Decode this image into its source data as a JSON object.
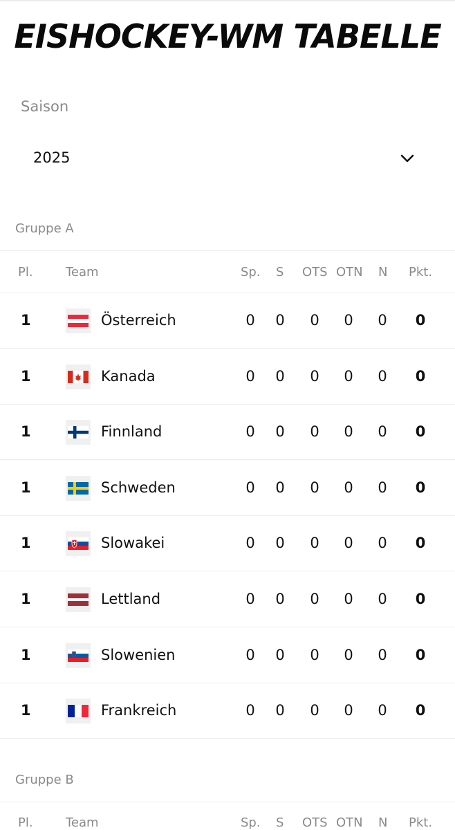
{
  "title": "EISHOCKEY-WM TABELLE",
  "season": {
    "label": "Saison",
    "value": "2025"
  },
  "columns": {
    "rank": "Pl.",
    "team": "Team",
    "sp": "Sp.",
    "s": "S",
    "ots": "OTS",
    "otn": "OTN",
    "n": "N",
    "pkt": "Pkt."
  },
  "groups": [
    {
      "name": "Gruppe A",
      "rows": [
        {
          "rank": "1",
          "team": "Österreich",
          "flag": "austria-flag-icon",
          "sp": "0",
          "s": "0",
          "ots": "0",
          "otn": "0",
          "n": "0",
          "pkt": "0"
        },
        {
          "rank": "1",
          "team": "Kanada",
          "flag": "canada-flag-icon",
          "sp": "0",
          "s": "0",
          "ots": "0",
          "otn": "0",
          "n": "0",
          "pkt": "0"
        },
        {
          "rank": "1",
          "team": "Finnland",
          "flag": "finland-flag-icon",
          "sp": "0",
          "s": "0",
          "ots": "0",
          "otn": "0",
          "n": "0",
          "pkt": "0"
        },
        {
          "rank": "1",
          "team": "Schweden",
          "flag": "sweden-flag-icon",
          "sp": "0",
          "s": "0",
          "ots": "0",
          "otn": "0",
          "n": "0",
          "pkt": "0"
        },
        {
          "rank": "1",
          "team": "Slowakei",
          "flag": "slovakia-flag-icon",
          "sp": "0",
          "s": "0",
          "ots": "0",
          "otn": "0",
          "n": "0",
          "pkt": "0"
        },
        {
          "rank": "1",
          "team": "Lettland",
          "flag": "latvia-flag-icon",
          "sp": "0",
          "s": "0",
          "ots": "0",
          "otn": "0",
          "n": "0",
          "pkt": "0"
        },
        {
          "rank": "1",
          "team": "Slowenien",
          "flag": "slovenia-flag-icon",
          "sp": "0",
          "s": "0",
          "ots": "0",
          "otn": "0",
          "n": "0",
          "pkt": "0"
        },
        {
          "rank": "1",
          "team": "Frankreich",
          "flag": "france-flag-icon",
          "sp": "0",
          "s": "0",
          "ots": "0",
          "otn": "0",
          "n": "0",
          "pkt": "0"
        }
      ]
    },
    {
      "name": "Gruppe B",
      "rows": []
    }
  ],
  "icons": {
    "dropdown": "chevron-down-icon"
  }
}
